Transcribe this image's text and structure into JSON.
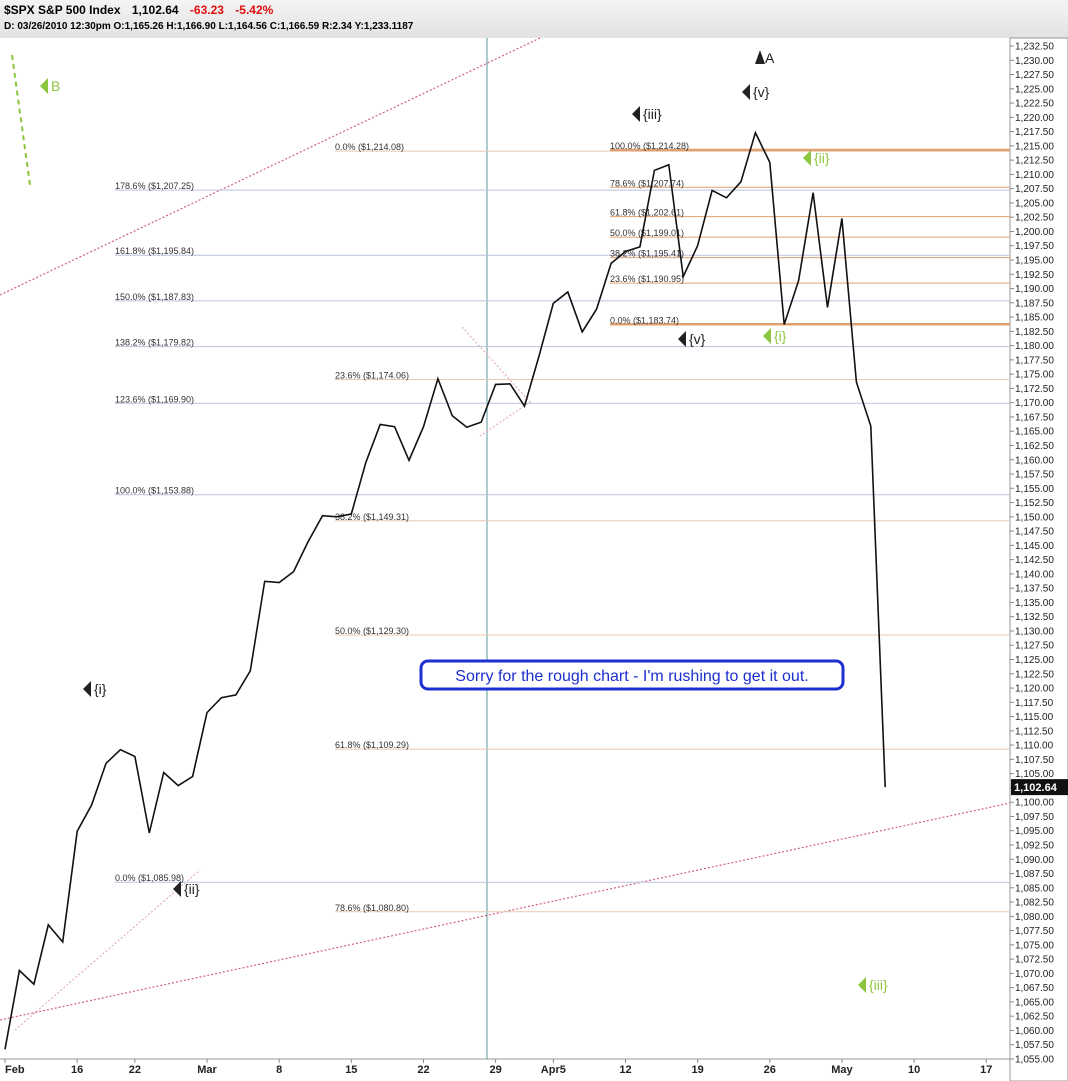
{
  "header": {
    "symbol": "$SPX S&P 500 Index",
    "last": "1,102.64",
    "change": "-63.23",
    "change_pct": "-5.42%",
    "details": "D: 03/26/2010 12:30pm O:1,165.26 H:1,166.90 L:1,164.56 C:1,166.59 R:2.34 Y:1,233.1187"
  },
  "chart_data": {
    "type": "line",
    "categories": [
      "Feb",
      null,
      null,
      null,
      null,
      "16",
      null,
      null,
      null,
      "22",
      null,
      null,
      null,
      null,
      "Mar",
      null,
      null,
      null,
      null,
      "8",
      null,
      null,
      null,
      null,
      "15",
      null,
      null,
      null,
      null,
      "22",
      null,
      null,
      null,
      null,
      "29",
      null,
      null,
      null,
      "Apr5",
      null,
      null,
      null,
      null,
      "12",
      null,
      null,
      null,
      null,
      "19",
      null,
      null,
      null,
      null,
      "26",
      null,
      null,
      null,
      null,
      "May",
      null,
      null,
      null,
      null,
      "10",
      null,
      null,
      null,
      null,
      "17",
      null
    ],
    "series": [
      {
        "name": "$SPX",
        "color": "#111111",
        "values": [
          1056.7,
          1070.5,
          1068.1,
          1078.5,
          1075.5,
          1094.9,
          1099.5,
          1106.8,
          1109.2,
          1108.0,
          1094.6,
          1105.2,
          1102.9,
          1104.5,
          1115.7,
          1118.3,
          1118.8,
          1123.0,
          1138.7,
          1138.5,
          1140.4,
          1145.6,
          1150.2,
          1150.0,
          1150.5,
          1159.5,
          1166.2,
          1165.8,
          1159.9,
          1165.8,
          1174.2,
          1167.7,
          1165.7,
          1166.6,
          1173.2,
          1173.3,
          1169.4,
          1178.1,
          1187.4,
          1189.4,
          1182.4,
          1186.4,
          1194.4,
          1196.5,
          1197.3,
          1210.7,
          1211.7,
          1192.1,
          1197.5,
          1207.2,
          1205.9,
          1208.7,
          1217.3,
          1212.1,
          1183.7,
          1191.4,
          1206.8,
          1186.7,
          1202.3,
          1173.6,
          1165.9,
          1102.64,
          null,
          null,
          null,
          null,
          null,
          null,
          null,
          null
        ]
      }
    ],
    "ylim": [
      1055,
      1232.5
    ],
    "yticks": [
      {
        "value": 1055,
        "label": "1,055.00"
      },
      {
        "value": 1057.5,
        "label": "1,057.50"
      },
      {
        "value": 1060,
        "label": "1,060.00"
      },
      {
        "value": 1062.5,
        "label": "1,062.50"
      },
      {
        "value": 1065,
        "label": "1,065.00"
      },
      {
        "value": 1067.5,
        "label": "1,067.50"
      },
      {
        "value": 1070,
        "label": "1,070.00"
      },
      {
        "value": 1072.5,
        "label": "1,072.50"
      },
      {
        "value": 1075,
        "label": "1,075.00"
      },
      {
        "value": 1077.5,
        "label": "1,077.50"
      },
      {
        "value": 1080,
        "label": "1,080.00"
      },
      {
        "value": 1082.5,
        "label": "1,082.50"
      },
      {
        "value": 1085,
        "label": "1,085.00"
      },
      {
        "value": 1087.5,
        "label": "1,087.50"
      },
      {
        "value": 1090,
        "label": "1,090.00"
      },
      {
        "value": 1092.5,
        "label": "1,092.50"
      },
      {
        "value": 1095,
        "label": "1,095.00"
      },
      {
        "value": 1097.5,
        "label": "1,097.50"
      },
      {
        "value": 1100,
        "label": "1,100.00"
      },
      {
        "value": 1102.5,
        "label": "1,102.50"
      },
      {
        "value": 1105,
        "label": "1,105.00"
      },
      {
        "value": 1107.5,
        "label": "1,107.50"
      },
      {
        "value": 1110,
        "label": "1,110.00"
      },
      {
        "value": 1112.5,
        "label": "1,112.50"
      },
      {
        "value": 1115,
        "label": "1,115.00"
      },
      {
        "value": 1117.5,
        "label": "1,117.50"
      },
      {
        "value": 1120,
        "label": "1,120.00"
      },
      {
        "value": 1122.5,
        "label": "1,122.50"
      },
      {
        "value": 1125,
        "label": "1,125.00"
      },
      {
        "value": 1127.5,
        "label": "1,127.50"
      },
      {
        "value": 1130,
        "label": "1,130.00"
      },
      {
        "value": 1132.5,
        "label": "1,132.50"
      },
      {
        "value": 1135,
        "label": "1,135.00"
      },
      {
        "value": 1137.5,
        "label": "1,137.50"
      },
      {
        "value": 1140,
        "label": "1,140.00"
      },
      {
        "value": 1142.5,
        "label": "1,142.50"
      },
      {
        "value": 1145,
        "label": "1,145.00"
      },
      {
        "value": 1147.5,
        "label": "1,147.50"
      },
      {
        "value": 1150,
        "label": "1,150.00"
      },
      {
        "value": 1152.5,
        "label": "1,152.50"
      },
      {
        "value": 1155,
        "label": "1,155.00"
      },
      {
        "value": 1157.5,
        "label": "1,157.50"
      },
      {
        "value": 1160,
        "label": "1,160.00"
      },
      {
        "value": 1162.5,
        "label": "1,162.50"
      },
      {
        "value": 1165,
        "label": "1,165.00"
      },
      {
        "value": 1167.5,
        "label": "1,167.50"
      },
      {
        "value": 1170,
        "label": "1,170.00"
      },
      {
        "value": 1172.5,
        "label": "1,172.50"
      },
      {
        "value": 1175,
        "label": "1,175.00"
      },
      {
        "value": 1177.5,
        "label": "1,177.50"
      },
      {
        "value": 1180,
        "label": "1,180.00"
      },
      {
        "value": 1182.5,
        "label": "1,182.50"
      },
      {
        "value": 1185,
        "label": "1,185.00"
      },
      {
        "value": 1187.5,
        "label": "1,187.50"
      },
      {
        "value": 1190,
        "label": "1,190.00"
      },
      {
        "value": 1192.5,
        "label": "1,192.50"
      },
      {
        "value": 1195,
        "label": "1,195.00"
      },
      {
        "value": 1197.5,
        "label": "1,197.50"
      },
      {
        "value": 1200,
        "label": "1,200.00"
      },
      {
        "value": 1202.5,
        "label": "1,202.50"
      },
      {
        "value": 1205,
        "label": "1,205.00"
      },
      {
        "value": 1207.5,
        "label": "1,207.50"
      },
      {
        "value": 1210,
        "label": "1,210.00"
      },
      {
        "value": 1212.5,
        "label": "1,212.50"
      },
      {
        "value": 1215,
        "label": "1,215.00"
      },
      {
        "value": 1217.5,
        "label": "1,217.50"
      },
      {
        "value": 1220,
        "label": "1,220.00"
      },
      {
        "value": 1222.5,
        "label": "1,222.50"
      },
      {
        "value": 1225,
        "label": "1,225.00"
      },
      {
        "value": 1227.5,
        "label": "1,227.50"
      },
      {
        "value": 1230,
        "label": "1,230.00"
      },
      {
        "value": 1232.5,
        "label": "1,232.50"
      }
    ],
    "price_tag": {
      "value": 1102.64,
      "label": "1,102.64"
    },
    "fib_groups": [
      {
        "color": "#b8c4dc",
        "levels": [
          {
            "label": "178.6%  ($1,207.25)",
            "value": 1207.25
          },
          {
            "label": "161.8%  ($1,195.84)",
            "value": 1195.84
          },
          {
            "label": "150.0%  ($1,187.83)",
            "value": 1187.83
          },
          {
            "label": "138.2%  ($1,179.82)",
            "value": 1179.82
          },
          {
            "label": "123.6%  ($1,169.90)",
            "value": 1169.9
          },
          {
            "label": "100.0%  ($1,153.88)",
            "value": 1153.88
          },
          {
            "label": "0.0%  ($1,085.98)",
            "value": 1085.98
          }
        ]
      },
      {
        "color": "#e8c8b0",
        "levels": [
          {
            "label": "0.0%  ($1,214.08)",
            "value": 1214.08
          },
          {
            "label": "23.6%  ($1,174.06)",
            "value": 1174.06
          },
          {
            "label": "38.2%  ($1,149.31)",
            "value": 1149.31
          },
          {
            "label": "50.0%  ($1,129.30)",
            "value": 1129.3
          },
          {
            "label": "61.8%  ($1,109.29)",
            "value": 1109.29
          },
          {
            "label": "78.6%  ($1,080.80)",
            "value": 1080.8
          }
        ]
      },
      {
        "color": "#e0a070",
        "levels": [
          {
            "label": "100.0%  ($1,214.28)",
            "value": 1214.28
          },
          {
            "label": "78.6%  ($1,207.74)",
            "value": 1207.74
          },
          {
            "label": "61.8%  ($1,202.61)",
            "value": 1202.61
          },
          {
            "label": "50.0%  ($1,199.01)",
            "value": 1199.01
          },
          {
            "label": "38.2%  ($1,195.41)",
            "value": 1195.41
          },
          {
            "label": "23.6%  ($1,190.95)",
            "value": 1190.95
          },
          {
            "label": "0.0%  ($1,183.74)",
            "value": 1183.74
          }
        ]
      }
    ],
    "wave_labels": [
      {
        "text": "A",
        "color": "#222222"
      },
      {
        "text": "{v}",
        "color": "#222222"
      },
      {
        "text": "{iii}",
        "color": "#222222"
      },
      {
        "text": "{i}",
        "color": "#222222"
      },
      {
        "text": "{ii}",
        "color": "#222222"
      },
      {
        "text": "{v}",
        "color": "#222222"
      },
      {
        "text": "B",
        "color": "#8cc63f"
      },
      {
        "text": "{ii}",
        "color": "#8cc63f"
      },
      {
        "text": "{i}",
        "color": "#8cc63f"
      },
      {
        "text": "{iii}",
        "color": "#8cc63f"
      }
    ],
    "note": "Sorry for the rough chart - I'm rushing to get it out."
  }
}
